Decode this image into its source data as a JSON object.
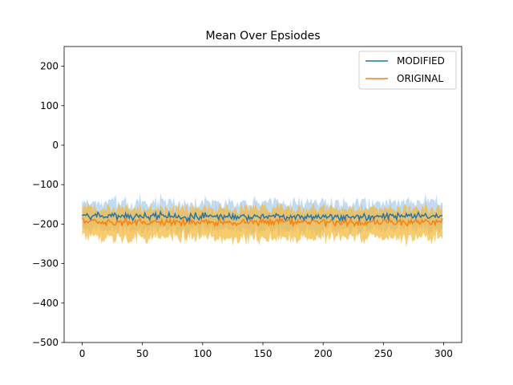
{
  "chart_data": {
    "type": "line",
    "title": "Mean Over Epsiodes",
    "xlabel": "",
    "ylabel": "",
    "xlim": [
      -15,
      315
    ],
    "ylim": [
      -500,
      250
    ],
    "xticks": [
      0,
      50,
      100,
      150,
      200,
      250,
      300
    ],
    "yticks": [
      -500,
      -400,
      -300,
      -200,
      -100,
      0,
      100,
      200
    ],
    "xtick_labels": [
      "0",
      "50",
      "100",
      "150",
      "200",
      "250",
      "300"
    ],
    "ytick_labels": [
      "−500",
      "−400",
      "−300",
      "−200",
      "−100",
      "0",
      "100",
      "200"
    ],
    "legend_position": "top-right",
    "grid": false,
    "x_range": [
      0,
      299
    ],
    "series": [
      {
        "name": "MODIFIED",
        "color": "#1f77b4",
        "band_color": "#a9cff2",
        "mean_approx": -180,
        "band_approx": [
          -215,
          -145
        ]
      },
      {
        "name": "ORIGINAL",
        "color": "#ff7f0e",
        "band_color": "#f6b93b",
        "mean_approx": -195,
        "band_approx": [
          -235,
          -160
        ]
      }
    ]
  }
}
